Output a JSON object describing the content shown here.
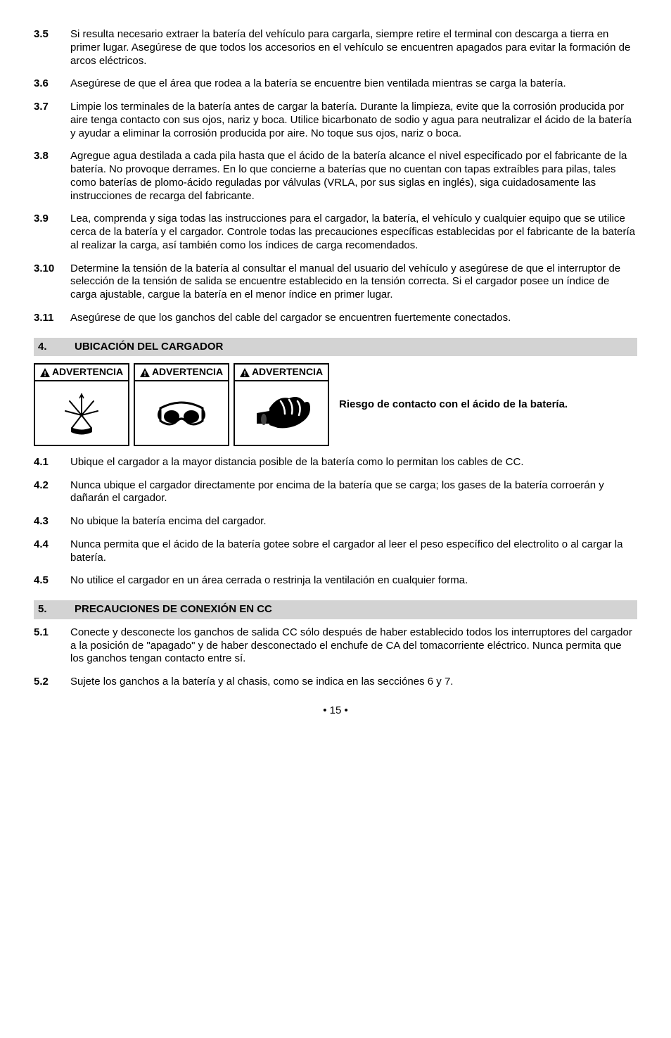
{
  "items_top": [
    {
      "num": "3.5",
      "text": "Si resulta necesario extraer la batería del vehículo para cargarla, siempre retire el terminal con descarga a tierra en primer lugar. Asegúrese de que todos los accesorios en el vehículo se encuentren apagados para evitar la formación de arcos eléctricos."
    },
    {
      "num": "3.6",
      "text": "Asegúrese de que el área que rodea a la batería se encuentre bien ventilada mientras se carga la batería."
    },
    {
      "num": "3.7",
      "text": "Limpie los terminales de la batería antes de cargar la batería. Durante la limpieza, evite que la corrosión producida por aire tenga contacto con sus ojos, nariz y boca. Utilice bicarbonato de sodio y agua para neutralizar el ácido de la batería y ayudar a eliminar la corrosión producida por aire. No toque sus ojos, nariz o boca."
    },
    {
      "num": "3.8",
      "text": "Agregue agua destilada a cada pila hasta que el ácido de la batería alcance el nivel especificado por el fabricante de la batería. No provoque derrames. En lo que concierne a baterías que no cuentan con tapas extraíbles para pilas, tales como baterías de plomo-ácido reguladas por válvulas (VRLA, por sus siglas en inglés), siga cuidadosamente las instrucciones de recarga del fabricante."
    },
    {
      "num": "3.9",
      "text": "Lea, comprenda y siga todas las instrucciones para el cargador, la batería, el vehículo y cualquier equipo que se utilice cerca de la batería y el cargador. Controle todas las precauciones específicas establecidas por el fabricante de la batería al realizar la carga, así también como los índices de carga recomendados."
    },
    {
      "num": "3.10",
      "text": "Determine la tensión de la batería al consultar el manual del usuario del vehículo y asegúrese de que el interruptor de selección de la tensión de salida se encuentre establecido en la tensión correcta. Si el cargador posee un índice de carga ajustable, cargue la batería en el menor índice en primer lugar."
    },
    {
      "num": "3.11",
      "text": "Asegúrese de que los ganchos del cable del cargador se encuentren fuertemente conectados."
    }
  ],
  "section4": {
    "num": "4.",
    "title": "UBICACIÓN DEL CARGADOR"
  },
  "warning_label": "ADVERTENCIA",
  "risk_text": "Riesgo de contacto con el ácido de la batería.",
  "items_4": [
    {
      "num": "4.1",
      "text": "Ubique el cargador a la mayor distancia posible de la batería como lo permitan los cables de CC."
    },
    {
      "num": "4.2",
      "text": "Nunca ubique el cargador directamente por encima de la batería que se carga; los gases de la batería corroerán y dañarán el cargador."
    },
    {
      "num": "4.3",
      "text": "No ubique la batería encima del cargador."
    },
    {
      "num": "4.4",
      "text": "Nunca permita que el ácido de la batería gotee sobre el cargador al leer el peso específico del electrolito o al cargar la batería."
    },
    {
      "num": "4.5",
      "text": "No utilice el cargador en un área cerrada o restrinja la ventilación en cualquier forma."
    }
  ],
  "section5": {
    "num": "5.",
    "title": "PRECAUCIONES DE CONEXIÓN EN CC"
  },
  "items_5": [
    {
      "num": "5.1",
      "text": "Conecte y desconecte los ganchos de salida CC sólo después de haber establecido todos los interruptores del cargador a la posición de \"apagado\" y de haber desconectado el enchufe de CA del tomacorriente eléctrico. Nunca permita que los ganchos tengan contacto entre sí."
    },
    {
      "num": "5.2",
      "text": "Sujete los ganchos a la batería y al chasis, como se indica en las secciónes 6 y 7."
    }
  ],
  "page_num": "• 15 •"
}
